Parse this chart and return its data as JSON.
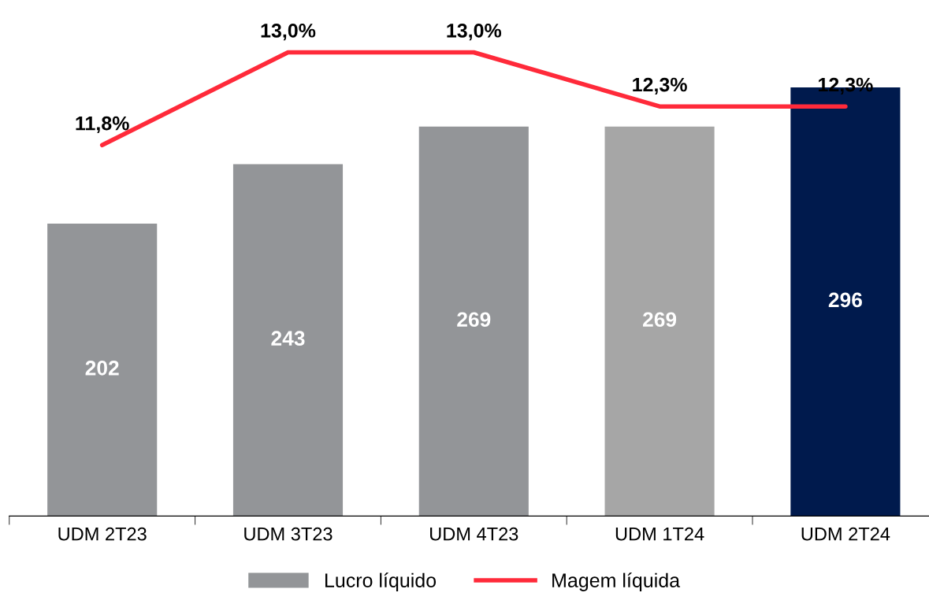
{
  "chart_data": {
    "type": "bar",
    "categories": [
      "UDM 2T23",
      "UDM 3T23",
      "UDM 4T23",
      "UDM 1T24",
      "UDM 2T24"
    ],
    "data_labels": true,
    "legend": "bottom",
    "grid": false,
    "series": [
      {
        "name": "Lucro líquido",
        "color": "#939598",
        "colors": [
          "#939598",
          "#939598",
          "#939598",
          "#a6a6a6",
          "#001a4d"
        ],
        "values": [
          202,
          243,
          269,
          269,
          296
        ]
      },
      {
        "name": "Magem líquida",
        "type": "line",
        "axis": "y2",
        "color": "#ff2a3a",
        "values": [
          11.8,
          13.0,
          13.0,
          12.3,
          12.3
        ],
        "value_labels": [
          "11,8%",
          "13,0%",
          "13,0%",
          "12,3%",
          "12,3%"
        ]
      }
    ]
  }
}
